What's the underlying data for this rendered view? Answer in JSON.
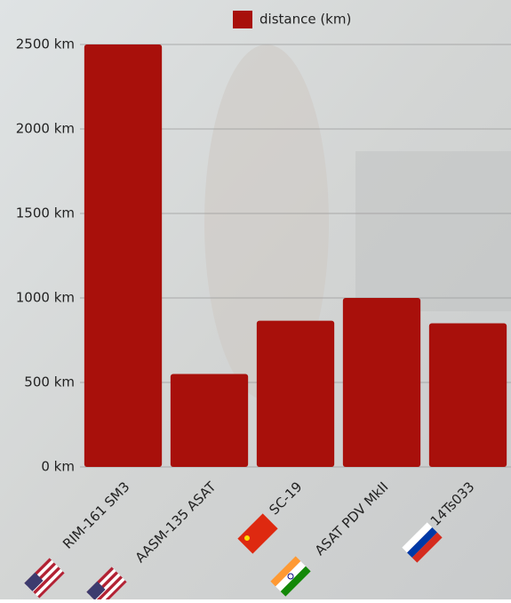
{
  "chart_data": {
    "type": "bar",
    "categories": [
      "RIM-161 SM3",
      "AASM-135 ASAT",
      "SC-19",
      "ASAT PDV MkII",
      "14Ts033"
    ],
    "series": [
      {
        "name": "distance (km)",
        "color": "#a8100b",
        "values": [
          2500,
          550,
          865,
          1000,
          850
        ]
      }
    ],
    "ylim": [
      0,
      2500
    ],
    "yticks": [
      {
        "value": 0,
        "label": "0 km"
      },
      {
        "value": 500,
        "label": "500 km"
      },
      {
        "value": 1000,
        "label": "1000 km"
      },
      {
        "value": 1500,
        "label": "1500 km"
      },
      {
        "value": 2000,
        "label": "2000 km"
      },
      {
        "value": 2500,
        "label": "2500 km"
      }
    ],
    "grid": true
  }
}
